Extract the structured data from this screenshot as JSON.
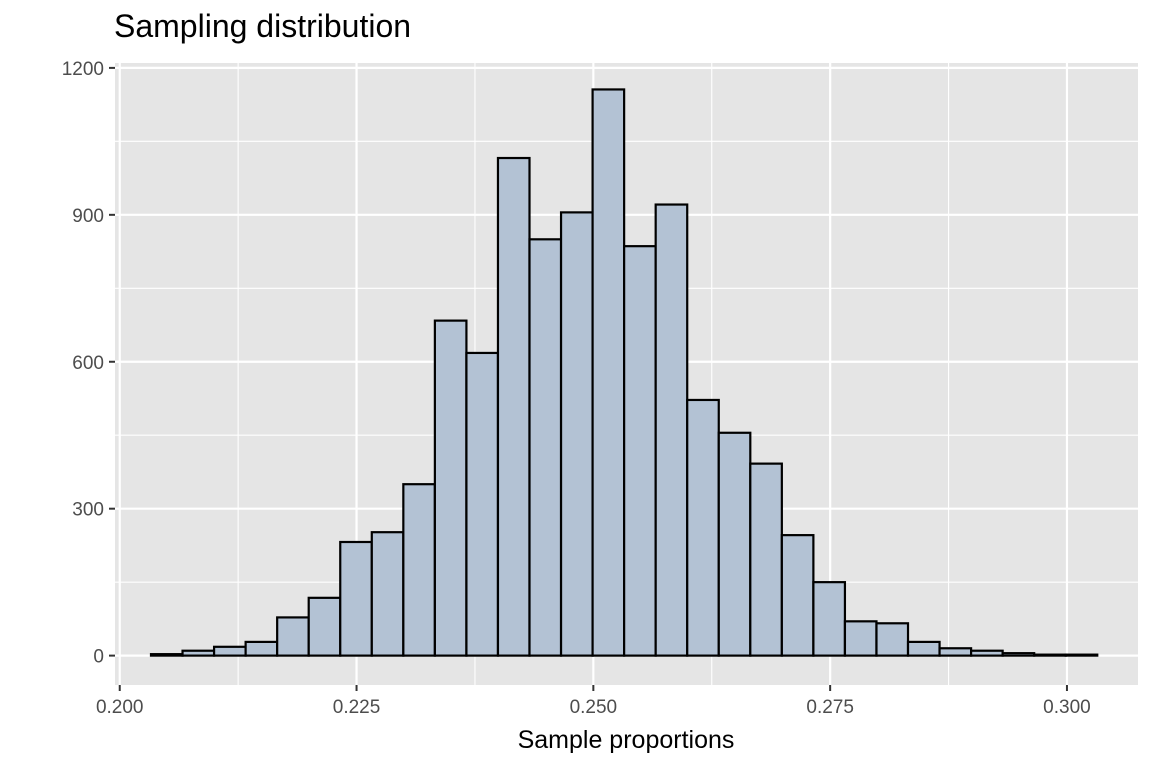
{
  "colors": {
    "panel_bg": "#e5e5e5",
    "grid_major": "#ffffff",
    "bar_fill": "#b3c2d4",
    "bar_stroke": "#000000",
    "tick_text": "#4d4d4d"
  },
  "chart_data": {
    "type": "bar",
    "title": "Sampling distribution",
    "xlabel": "Sample proportions",
    "ylabel": "",
    "xlim": [
      0.1995,
      0.3075
    ],
    "ylim": [
      -60,
      1210
    ],
    "x_ticks": [
      0.2,
      0.225,
      0.25,
      0.275,
      0.3
    ],
    "x_tick_labels": [
      "0.200",
      "0.225",
      "0.250",
      "0.275",
      "0.300"
    ],
    "y_ticks": [
      0,
      300,
      600,
      900,
      1200
    ],
    "y_tick_labels": [
      "0",
      "300",
      "600",
      "900",
      "1200"
    ],
    "grid": true,
    "bin_width": 0.00333,
    "bins_start": 0.2033,
    "values": [
      3,
      10,
      18,
      28,
      78,
      118,
      232,
      252,
      350,
      684,
      618,
      1016,
      850,
      905,
      1156,
      836,
      921,
      522,
      455,
      392,
      246,
      150,
      70,
      66,
      28,
      15,
      10,
      5,
      2,
      2
    ]
  }
}
